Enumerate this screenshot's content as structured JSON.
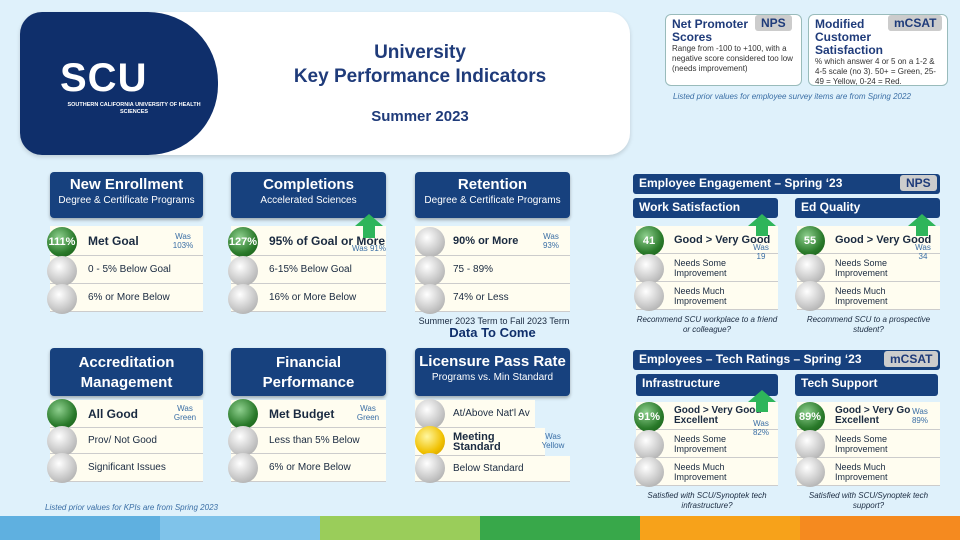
{
  "header": {
    "title1": "University",
    "title2": "Key Performance Indicators",
    "period": "Summer 2023",
    "logo": "SCU",
    "logo_sub": "SOUTHERN CALIFORNIA UNIVERSITY OF HEALTH SCIENCES"
  },
  "legend": {
    "nps": {
      "title": "Net Promoter Scores",
      "tag": "NPS",
      "desc": "Range from -100 to +100, with a negative score considered too low (needs improvement)"
    },
    "mcsat": {
      "title": "Modified Customer Satisfaction",
      "tag": "mCSAT",
      "desc": "% which answer 4 or 5 on a 1-2 & 4-5 scale (no 3). 50+ = Green, 25-49 = Yellow, 0-24 = Red."
    },
    "note": "Listed prior values for employee survey items are from Spring 2022"
  },
  "kpis": [
    {
      "title": "New Enrollment",
      "sub": "Degree & Certificate Programs",
      "value": "111%",
      "r1": "Met Goal",
      "r2": "0 - 5% Below Goal",
      "r3": "6% or More Below",
      "was": "Was 103%"
    },
    {
      "title": "Completions",
      "sub": "Accelerated Sciences",
      "value": "127%",
      "r1": "95% of Goal or More",
      "r2": "6-15% Below Goal",
      "r3": "16% or More Below",
      "was": "Was 91%"
    },
    {
      "title": "Retention",
      "sub": "Degree & Certificate Programs",
      "r1": "90% or More",
      "r2": "75 - 89%",
      "r3": "74% or Less",
      "was": "Was 93%",
      "note": "Summer 2023 Term to Fall 2023 Term",
      "status": "Data To Come"
    },
    {
      "title": "Accreditation Management",
      "r1": "All Good",
      "r2": "Prov/ Not Good",
      "r3": "Significant Issues",
      "was": "Was Green"
    },
    {
      "title": "Financial Performance",
      "r1": "Met Budget",
      "r2": "Less than 5% Below",
      "r3": "6% or More Below",
      "was": "Was Green"
    },
    {
      "title": "Licensure Pass Rate",
      "sub": "Programs vs. Min Standard",
      "r1": "At/Above Nat'l Av",
      "r2": "Meeting Standard",
      "r3": "Below Standard",
      "was": "Was Yellow"
    }
  ],
  "engagement": {
    "title": "Employee Engagement – Spring ‘23",
    "tag": "NPS",
    "a": {
      "title": "Work Satisfaction",
      "value": "41",
      "r1": "Good > Very Good",
      "r2": "Needs Some Improvement",
      "r3": "Needs Much Improvement",
      "was": "Was 19",
      "caption": "Recommend SCU workplace to a friend or colleague?"
    },
    "b": {
      "title": "Ed Quality",
      "value": "55",
      "r1": "Good > Very Good",
      "r2": "Needs Some Improvement",
      "r3": "Needs Much Improvement",
      "was": "Was 34",
      "caption": "Recommend SCU to a prospective student?"
    }
  },
  "tech": {
    "title": "Employees – Tech Ratings – Spring ‘23",
    "tag": "mCSAT",
    "a": {
      "title": "Infrastructure",
      "value": "91%",
      "r1": "Good > Very Good Excellent",
      "r2": "Needs Some Improvement",
      "r3": "Needs Much Improvement",
      "was": "Was 82%",
      "caption": "Satisfied with SCU/Synoptek tech infrastructure?"
    },
    "b": {
      "title": "Tech Support",
      "value": "89%",
      "r1": "Good > Very Go Excellent",
      "r2": "Needs Some Improvement",
      "r3": "Needs Much Improvement",
      "was": "Was 89%",
      "caption": "Satisfied with SCU/Synoptek tech support?"
    }
  },
  "footnote": "Listed prior values for KPIs are from Spring 2023",
  "colors": {
    "navy": "#17417e",
    "green": "#2a7a2a",
    "yellow": "#f0c000",
    "arrow": "#2eb55a"
  }
}
